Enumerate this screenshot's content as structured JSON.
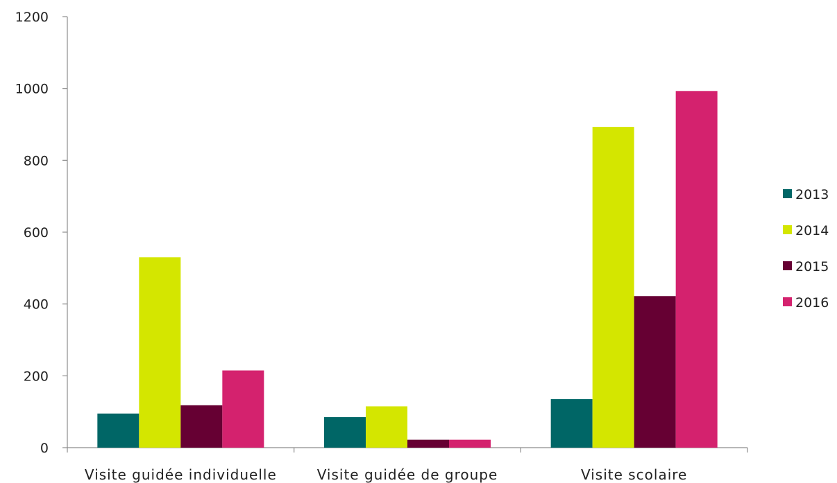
{
  "chart_data": {
    "type": "bar",
    "categories": [
      "Visite guidée individuelle",
      "Visite guidée de groupe",
      "Visite scolaire"
    ],
    "series": [
      {
        "name": "2013",
        "color": "#006666",
        "values": [
          95,
          85,
          135
        ]
      },
      {
        "name": "2014",
        "color": "#d4e600",
        "values": [
          530,
          115,
          893
        ]
      },
      {
        "name": "2015",
        "color": "#660033",
        "values": [
          118,
          22,
          422
        ]
      },
      {
        "name": "2016",
        "color": "#d4226e",
        "values": [
          215,
          22,
          993
        ]
      }
    ],
    "yticks": [
      "0",
      "200",
      "400",
      "600",
      "800",
      "1000",
      "1200"
    ],
    "ylim": [
      0,
      1200
    ],
    "grid": false,
    "legend_position": "right"
  }
}
